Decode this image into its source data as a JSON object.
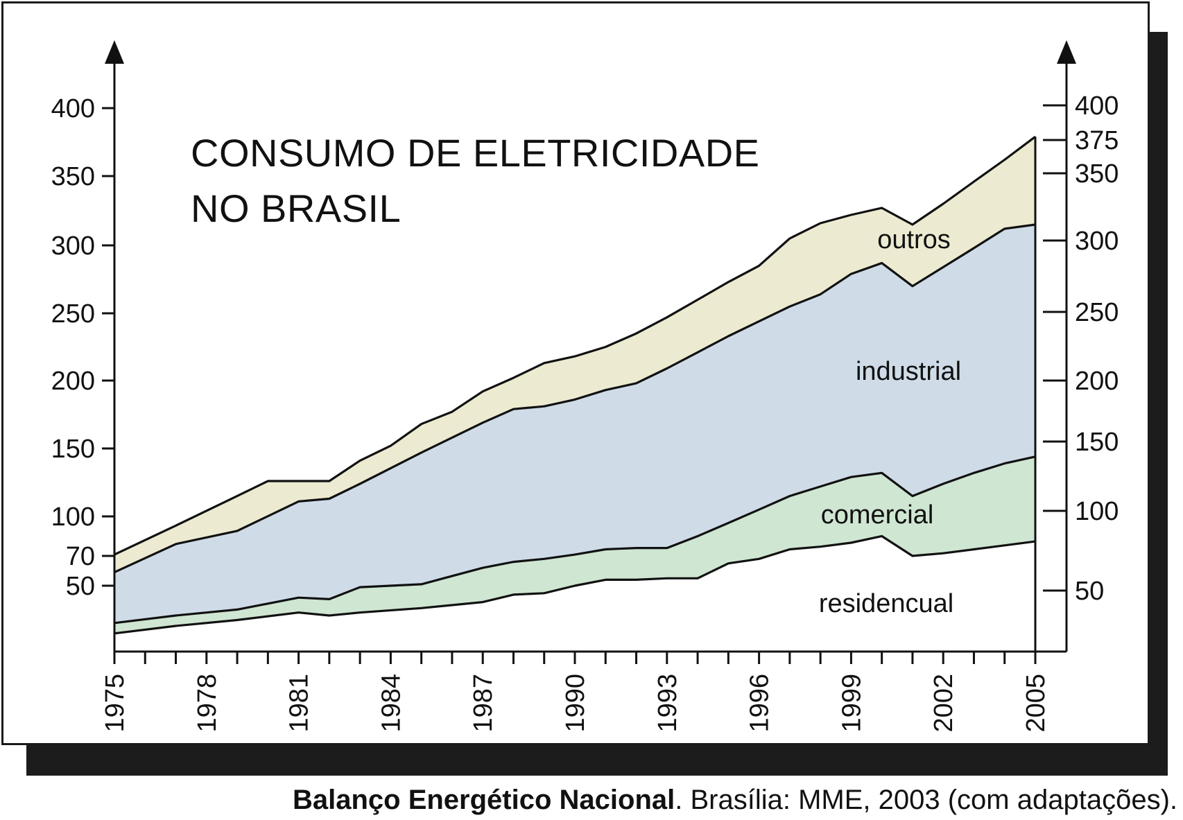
{
  "chart_data": {
    "type": "area",
    "stacked": true,
    "title": "CONSUMO DE ELETRICIDADE NO BRASIL",
    "title_lines": [
      "CONSUMO DE ELETRICIDADE",
      "NO BRASIL"
    ],
    "xlabel": "",
    "ylabel": "",
    "xlim": [
      1975,
      2005
    ],
    "x_ticks": [
      1975,
      1978,
      1981,
      1984,
      1987,
      1990,
      1993,
      1996,
      1999,
      2002,
      2005
    ],
    "left_y_ticks": [
      50,
      70,
      100,
      150,
      200,
      250,
      300,
      350,
      400
    ],
    "right_y_ticks": [
      50,
      100,
      150,
      200,
      250,
      300,
      350,
      375,
      400
    ],
    "ylim": [
      0,
      420
    ],
    "grid": false,
    "legend": "none (labels inside areas)",
    "series": [
      {
        "name": "residencual",
        "color": "#ffffff",
        "x": [
          1975,
          1977,
          1979,
          1981,
          1982,
          1983,
          1985,
          1987,
          1988,
          1989,
          1990,
          1991,
          1992,
          1993,
          1994,
          1995,
          1996,
          1997,
          1998,
          1999,
          2000,
          2001,
          2002,
          2003,
          2004,
          2005
        ],
        "top": [
          18,
          23,
          27,
          32,
          30,
          32,
          35,
          39,
          44,
          45,
          50,
          54,
          54,
          55,
          55,
          65,
          68,
          75,
          77,
          80,
          85,
          70,
          72,
          75,
          78,
          81
        ]
      },
      {
        "name": "comercial",
        "color": "#cfe6d2",
        "x": [
          1975,
          1977,
          1979,
          1981,
          1982,
          1983,
          1985,
          1987,
          1988,
          1989,
          1990,
          1991,
          1992,
          1993,
          1994,
          1995,
          1996,
          1997,
          1998,
          1999,
          2000,
          2001,
          2002,
          2003,
          2004,
          2005
        ],
        "top": [
          25,
          30,
          34,
          42,
          41,
          49,
          51,
          62,
          66,
          68,
          71,
          75,
          76,
          76,
          85,
          95,
          105,
          115,
          122,
          129,
          132,
          115,
          124,
          132,
          139,
          144
        ]
      },
      {
        "name": "industrial",
        "color": "#cfdce8",
        "x": [
          1975,
          1977,
          1979,
          1981,
          1982,
          1983,
          1985,
          1987,
          1988,
          1989,
          1990,
          1991,
          1992,
          1993,
          1994,
          1995,
          1996,
          1997,
          1998,
          1999,
          2000,
          2001,
          2002,
          2003,
          2004,
          2005
        ],
        "top": [
          59,
          79,
          89,
          111,
          113,
          124,
          147,
          169,
          179,
          181,
          186,
          193,
          198,
          209,
          221,
          233,
          244,
          255,
          264,
          279,
          287,
          270,
          284,
          298,
          312,
          315
        ]
      },
      {
        "name": "outros",
        "color": "#ecebd1",
        "x": [
          1975,
          1977,
          1979,
          1980,
          1981,
          1982,
          1983,
          1984,
          1985,
          1986,
          1987,
          1988,
          1989,
          1990,
          1991,
          1992,
          1993,
          1994,
          1995,
          1996,
          1997,
          1998,
          1999,
          2000,
          2001,
          2002,
          2003,
          2004,
          2005
        ],
        "top": [
          71,
          93,
          115,
          126,
          126,
          126,
          141,
          152,
          168,
          177,
          192,
          202,
          213,
          218,
          225,
          235,
          247,
          260,
          273,
          285,
          305,
          316,
          322,
          327,
          315,
          330,
          346,
          362,
          379
        ]
      }
    ],
    "area_labels": [
      "outros",
      "industrial",
      "comercial",
      "residencual"
    ]
  },
  "caption": {
    "bold": "Balanço Energético Nacional",
    "rest": ". Brasília: MME, 2003 (com adaptações)."
  },
  "colors": {
    "outros": "#ecebd1",
    "industrial": "#cfdce8",
    "comercial": "#cfe6d2",
    "residencial": "#ffffff",
    "stroke": "#111111",
    "shadow": "#1c1c1c"
  }
}
